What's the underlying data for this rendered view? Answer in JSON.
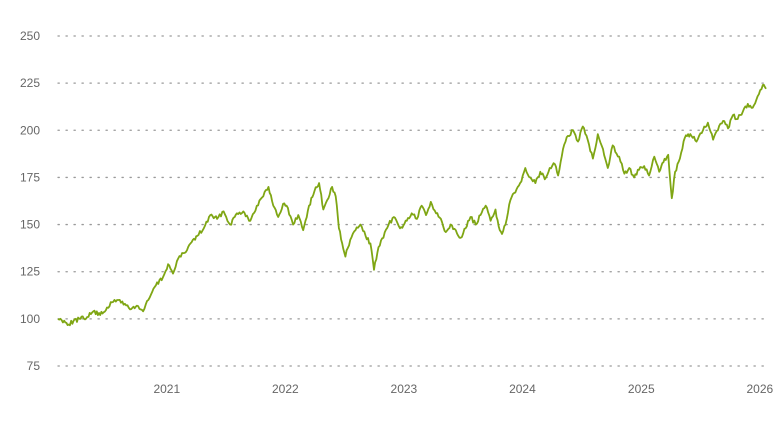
{
  "chart_data": {
    "type": "line",
    "title": "",
    "xlabel": "",
    "ylabel": "",
    "ylim": [
      75,
      250
    ],
    "xlim": [
      "2020-02-01",
      "2026-01-20"
    ],
    "grid": {
      "y": true,
      "x": false,
      "style": "dotted"
    },
    "y_ticks": [
      "75",
      "100",
      "125",
      "150",
      "175",
      "200",
      "225",
      "250"
    ],
    "y_tick_values": [
      75,
      100,
      125,
      150,
      175,
      200,
      225,
      250
    ],
    "x_ticks": [
      "2021",
      "2022",
      "2023",
      "2024",
      "2025",
      "2026"
    ],
    "x_tick_dates": [
      "2021-01-01",
      "2022-01-01",
      "2023-01-01",
      "2024-01-01",
      "2025-01-01",
      "2026-01-01"
    ],
    "series": [
      {
        "color": "#7fa614",
        "points": [
          [
            "2020-02-01",
            100
          ],
          [
            "2020-02-20",
            99
          ],
          [
            "2020-03-05",
            97
          ],
          [
            "2020-03-20",
            99
          ],
          [
            "2020-04-10",
            100
          ],
          [
            "2020-05-01",
            101
          ],
          [
            "2020-05-20",
            104
          ],
          [
            "2020-06-10",
            102
          ],
          [
            "2020-07-01",
            106
          ],
          [
            "2020-07-20",
            109
          ],
          [
            "2020-08-05",
            110
          ],
          [
            "2020-08-25",
            108
          ],
          [
            "2020-09-10",
            105
          ],
          [
            "2020-10-01",
            107
          ],
          [
            "2020-10-20",
            104
          ],
          [
            "2020-11-05",
            110
          ],
          [
            "2020-11-25",
            117
          ],
          [
            "2020-12-20",
            122
          ],
          [
            "2021-01-05",
            129
          ],
          [
            "2021-01-20",
            124
          ],
          [
            "2021-02-05",
            132
          ],
          [
            "2021-02-25",
            135
          ],
          [
            "2021-03-15",
            140
          ],
          [
            "2021-04-05",
            144
          ],
          [
            "2021-04-25",
            148
          ],
          [
            "2021-05-15",
            155
          ],
          [
            "2021-06-05",
            153
          ],
          [
            "2021-06-25",
            157
          ],
          [
            "2021-07-15",
            150
          ],
          [
            "2021-08-05",
            156
          ],
          [
            "2021-08-25",
            157
          ],
          [
            "2021-09-15",
            152
          ],
          [
            "2021-10-05",
            160
          ],
          [
            "2021-10-25",
            165
          ],
          [
            "2021-11-10",
            170
          ],
          [
            "2021-11-25",
            160
          ],
          [
            "2021-12-10",
            154
          ],
          [
            "2021-12-25",
            161
          ],
          [
            "2022-01-05",
            160
          ],
          [
            "2022-01-25",
            150
          ],
          [
            "2022-02-10",
            155
          ],
          [
            "2022-02-25",
            147
          ],
          [
            "2022-03-15",
            160
          ],
          [
            "2022-04-01",
            168
          ],
          [
            "2022-04-15",
            172
          ],
          [
            "2022-04-28",
            158
          ],
          [
            "2022-05-10",
            163
          ],
          [
            "2022-05-25",
            170
          ],
          [
            "2022-06-05",
            165
          ],
          [
            "2022-06-15",
            148
          ],
          [
            "2022-06-25",
            140
          ],
          [
            "2022-07-05",
            133
          ],
          [
            "2022-07-20",
            142
          ],
          [
            "2022-08-05",
            147
          ],
          [
            "2022-08-20",
            150
          ],
          [
            "2022-09-05",
            144
          ],
          [
            "2022-09-20",
            140
          ],
          [
            "2022-10-01",
            126
          ],
          [
            "2022-10-15",
            138
          ],
          [
            "2022-10-30",
            143
          ],
          [
            "2022-11-15",
            150
          ],
          [
            "2022-12-01",
            154
          ],
          [
            "2022-12-20",
            148
          ],
          [
            "2023-01-10",
            152
          ],
          [
            "2023-01-25",
            156
          ],
          [
            "2023-02-10",
            153
          ],
          [
            "2023-02-25",
            160
          ],
          [
            "2023-03-10",
            155
          ],
          [
            "2023-03-25",
            162
          ],
          [
            "2023-04-10",
            156
          ],
          [
            "2023-04-25",
            153
          ],
          [
            "2023-05-10",
            146
          ],
          [
            "2023-05-25",
            150
          ],
          [
            "2023-06-10",
            147
          ],
          [
            "2023-06-25",
            143
          ],
          [
            "2023-07-10",
            148
          ],
          [
            "2023-07-25",
            154
          ],
          [
            "2023-08-10",
            150
          ],
          [
            "2023-08-25",
            155
          ],
          [
            "2023-09-10",
            160
          ],
          [
            "2023-09-25",
            152
          ],
          [
            "2023-10-10",
            158
          ],
          [
            "2023-10-20",
            149
          ],
          [
            "2023-10-30",
            145
          ],
          [
            "2023-11-10",
            150
          ],
          [
            "2023-11-25",
            163
          ],
          [
            "2023-12-10",
            167
          ],
          [
            "2023-12-25",
            172
          ],
          [
            "2024-01-10",
            180
          ],
          [
            "2024-01-25",
            175
          ],
          [
            "2024-02-10",
            172
          ],
          [
            "2024-02-25",
            178
          ],
          [
            "2024-03-10",
            174
          ],
          [
            "2024-03-25",
            180
          ],
          [
            "2024-04-10",
            182
          ],
          [
            "2024-04-20",
            176
          ],
          [
            "2024-05-05",
            190
          ],
          [
            "2024-05-20",
            197
          ],
          [
            "2024-06-05",
            200
          ],
          [
            "2024-06-20",
            194
          ],
          [
            "2024-07-05",
            202
          ],
          [
            "2024-07-20",
            195
          ],
          [
            "2024-08-05",
            185
          ],
          [
            "2024-08-20",
            198
          ],
          [
            "2024-09-05",
            190
          ],
          [
            "2024-09-20",
            180
          ],
          [
            "2024-10-05",
            192
          ],
          [
            "2024-10-25",
            186
          ],
          [
            "2024-11-10",
            177
          ],
          [
            "2024-11-25",
            180
          ],
          [
            "2024-12-10",
            175
          ],
          [
            "2024-12-25",
            179
          ],
          [
            "2025-01-10",
            181
          ],
          [
            "2025-01-25",
            176
          ],
          [
            "2025-02-10",
            186
          ],
          [
            "2025-02-25",
            178
          ],
          [
            "2025-03-10",
            183
          ],
          [
            "2025-03-25",
            187
          ],
          [
            "2025-04-05",
            164
          ],
          [
            "2025-04-15",
            178
          ],
          [
            "2025-04-30",
            185
          ],
          [
            "2025-05-15",
            196
          ],
          [
            "2025-06-01",
            198
          ],
          [
            "2025-06-20",
            194
          ],
          [
            "2025-07-10",
            200
          ],
          [
            "2025-07-25",
            204
          ],
          [
            "2025-08-10",
            195
          ],
          [
            "2025-08-25",
            200
          ],
          [
            "2025-09-10",
            205
          ],
          [
            "2025-09-25",
            201
          ],
          [
            "2025-10-10",
            208
          ],
          [
            "2025-10-25",
            206
          ],
          [
            "2025-11-10",
            210
          ],
          [
            "2025-11-25",
            214
          ],
          [
            "2025-12-10",
            212
          ],
          [
            "2025-12-25",
            218
          ],
          [
            "2026-01-10",
            224
          ],
          [
            "2026-01-20",
            222
          ]
        ]
      }
    ]
  }
}
